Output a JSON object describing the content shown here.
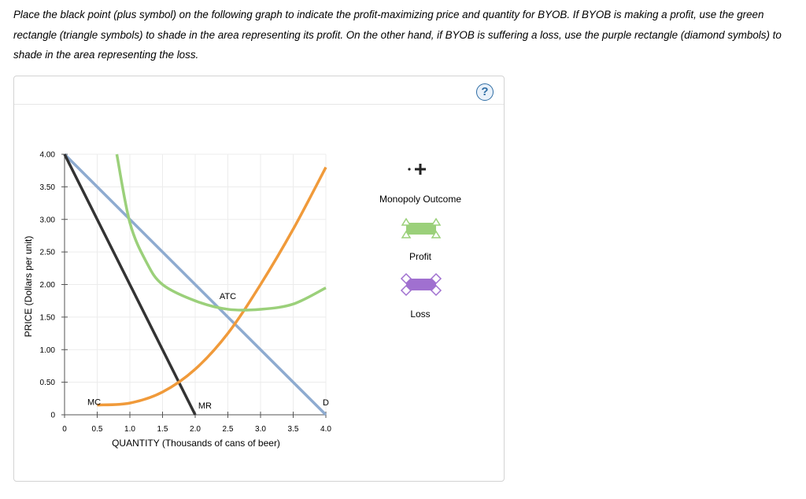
{
  "instructions": "Place the black point (plus symbol) on the following graph to indicate the profit-maximizing price and quantity for BYOB. If BYOB is making a profit, use the green rectangle (triangle symbols) to shade in the area representing its profit. On the other hand, if BYOB is suffering a loss, use the purple rectangle (diamond symbols) to shade in the area representing the loss.",
  "help_icon": "?",
  "palette": {
    "monopoly_outcome": "Monopoly Outcome",
    "profit": "Profit",
    "loss": "Loss"
  },
  "colors": {
    "demand": "#8eabd0",
    "mr": "#333333",
    "mc": "#f09a3a",
    "atc": "#9bd07a",
    "profit": "#9bd07a",
    "loss": "#a070d0"
  },
  "chart_data": {
    "type": "line",
    "xlabel": "QUANTITY (Thousands of cans of beer)",
    "ylabel": "PRICE (Dollars per unit)",
    "xlim": [
      0,
      4.0
    ],
    "ylim": [
      0,
      4.0
    ],
    "x_ticks": [
      "0",
      "0.5",
      "1.0",
      "1.5",
      "2.0",
      "2.5",
      "3.0",
      "3.5",
      "4.0"
    ],
    "y_ticks": [
      "0",
      "0.50",
      "1.00",
      "1.50",
      "2.00",
      "2.50",
      "3.00",
      "3.50",
      "4.00"
    ],
    "grid": true,
    "series": [
      {
        "name": "D",
        "color": "#8eabd0",
        "points": [
          [
            0,
            4.0
          ],
          [
            4.0,
            0
          ]
        ]
      },
      {
        "name": "MR",
        "color": "#333333",
        "points": [
          [
            0,
            4.0
          ],
          [
            2.0,
            0
          ]
        ]
      },
      {
        "name": "MC",
        "color": "#f09a3a",
        "points": [
          [
            0.5,
            0.15
          ],
          [
            1.0,
            0.18
          ],
          [
            1.5,
            0.35
          ],
          [
            2.0,
            0.7
          ],
          [
            2.5,
            1.25
          ],
          [
            3.0,
            2.0
          ],
          [
            3.5,
            2.85
          ],
          [
            4.0,
            3.8
          ]
        ]
      },
      {
        "name": "ATC",
        "color": "#9bd07a",
        "points": [
          [
            0.8,
            4.0
          ],
          [
            1.0,
            2.95
          ],
          [
            1.25,
            2.35
          ],
          [
            1.5,
            2.0
          ],
          [
            2.0,
            1.75
          ],
          [
            2.5,
            1.62
          ],
          [
            3.0,
            1.62
          ],
          [
            3.5,
            1.7
          ],
          [
            4.0,
            1.95
          ]
        ]
      }
    ],
    "labels": [
      {
        "text": "ATC",
        "x": 2.5,
        "y": 1.74
      },
      {
        "text": "MC",
        "x": 0.5,
        "y": 0.15
      },
      {
        "text": "MR",
        "x": 2.15,
        "y": 0.05
      },
      {
        "text": "D",
        "x": 4.0,
        "y": 0.05
      }
    ]
  }
}
